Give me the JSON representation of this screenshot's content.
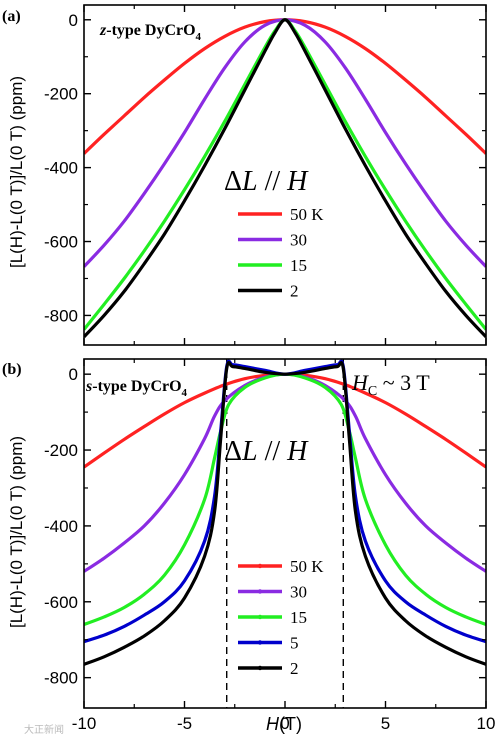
{
  "figure": {
    "ylabel_a": "[L(H)-L(0 T)]/L(0 T) (ppm)",
    "ylabel_b": "[L(H)-L(0 T)]/L(0 T) (ppm)",
    "xlabel_main": "H",
    "xlabel_unit": "(T)",
    "watermark": "大正新闻"
  },
  "chart_data": [
    {
      "type": "line",
      "panel_label": "(a)",
      "sample_name": "z-type DyCrO",
      "sample_subscript": "4",
      "annotation": "ΔL // H",
      "xlim": [
        -10,
        10
      ],
      "ylim": [
        -880,
        40
      ],
      "x_ticks": [
        -10,
        -5,
        0,
        5,
        10
      ],
      "y_ticks": [
        0,
        -200,
        -400,
        -600,
        -800
      ],
      "legend": {
        "position": "center-left",
        "entries": [
          "50 K",
          "30",
          "15",
          "2"
        ]
      },
      "series": [
        {
          "name": "50 K",
          "color": "#ff2222",
          "x": [
            0,
            1,
            2,
            3,
            4,
            5,
            6,
            7,
            8,
            9,
            10
          ],
          "y": [
            0,
            -5,
            -20,
            -45,
            -78,
            -118,
            -163,
            -210,
            -260,
            -310,
            -362
          ]
        },
        {
          "name": "30",
          "color": "#8a2be2",
          "x": [
            0,
            1,
            2,
            3,
            4,
            5,
            6,
            7,
            8,
            9,
            10
          ],
          "y": [
            0,
            -15,
            -60,
            -130,
            -215,
            -305,
            -390,
            -470,
            -545,
            -610,
            -668
          ]
        },
        {
          "name": "15",
          "color": "#22ee22",
          "x": [
            0,
            0.5,
            1,
            2,
            3,
            4,
            5,
            6,
            7,
            8,
            9,
            10
          ],
          "y": [
            0,
            -30,
            -75,
            -175,
            -275,
            -370,
            -460,
            -545,
            -625,
            -700,
            -770,
            -838
          ]
        },
        {
          "name": "2",
          "color": "#000000",
          "x": [
            0,
            0.5,
            1,
            2,
            3,
            4,
            5,
            6,
            7,
            8,
            9,
            10
          ],
          "y": [
            0,
            -35,
            -85,
            -190,
            -295,
            -395,
            -490,
            -580,
            -660,
            -735,
            -800,
            -858
          ]
        }
      ]
    },
    {
      "type": "line",
      "panel_label": "(b)",
      "sample_name": "s-type DyCrO",
      "sample_subscript": "4",
      "annotation": "ΔL // H",
      "annotation2_main": "H",
      "annotation2_sub": "C",
      "annotation2_rest": " ~ 3 T",
      "xlim": [
        -10,
        10
      ],
      "ylim": [
        -880,
        40
      ],
      "x_ticks": [
        -10,
        -5,
        0,
        5,
        10
      ],
      "y_ticks": [
        0,
        -200,
        -400,
        -600,
        -800
      ],
      "vlines": [
        -2.9,
        2.9
      ],
      "legend": {
        "position": "center",
        "entries": [
          "50 K",
          "30",
          "15",
          "5",
          "2"
        ]
      },
      "series": [
        {
          "name": "50 K",
          "color": "#ff2222",
          "x": [
            0,
            1,
            2,
            3,
            4,
            5,
            6,
            7,
            8,
            9,
            10
          ],
          "y": [
            0,
            -3,
            -12,
            -28,
            -50,
            -75,
            -105,
            -138,
            -172,
            -208,
            -245
          ]
        },
        {
          "name": "30",
          "color": "#8a2be2",
          "x": [
            0,
            1,
            2,
            3,
            3.5,
            4,
            5,
            6,
            7,
            8,
            9,
            10
          ],
          "y": [
            0,
            -8,
            -30,
            -70,
            -110,
            -170,
            -265,
            -340,
            -400,
            -445,
            -485,
            -520
          ]
        },
        {
          "name": "15",
          "color": "#22ee22",
          "x": [
            0,
            1,
            2,
            2.8,
            3.2,
            3.5,
            4,
            5,
            6,
            7,
            8,
            9,
            10
          ],
          "y": [
            0,
            -10,
            -35,
            -80,
            -150,
            -220,
            -330,
            -450,
            -530,
            -580,
            -615,
            -640,
            -660
          ]
        },
        {
          "name": "5",
          "color": "#0000cc",
          "x": [
            0,
            1,
            2,
            2.6,
            2.9,
            3.2,
            3.5,
            4,
            5,
            6,
            7,
            8,
            9,
            10
          ],
          "y": [
            0,
            10,
            20,
            25,
            20,
            -150,
            -320,
            -440,
            -545,
            -600,
            -635,
            -665,
            -688,
            -705
          ]
        },
        {
          "name": "2",
          "color": "#000000",
          "x": [
            0,
            1,
            2,
            2.6,
            2.9,
            3.2,
            3.5,
            4,
            5,
            6,
            7,
            8,
            9,
            10
          ],
          "y": [
            0,
            5,
            15,
            20,
            15,
            -170,
            -360,
            -480,
            -590,
            -650,
            -690,
            -720,
            -745,
            -765
          ]
        }
      ]
    }
  ]
}
